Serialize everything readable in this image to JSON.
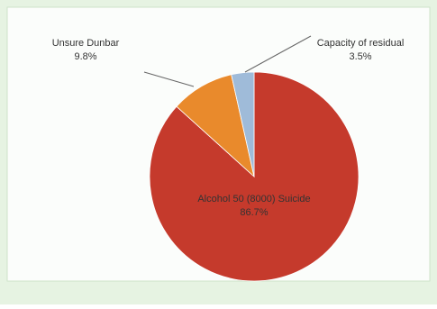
{
  "chart_data": {
    "type": "pie",
    "categories": [
      "Alcohol 50 (8000) Suicide",
      "Unsure Dunbar",
      "Capacity of residual"
    ],
    "values": [
      86.7,
      9.8,
      3.5
    ],
    "value_labels": [
      "86.7%",
      "9.8%",
      "3.5%"
    ],
    "colors": [
      "#c53a2c",
      "#e98a2c",
      "#9fbbd9"
    ]
  }
}
